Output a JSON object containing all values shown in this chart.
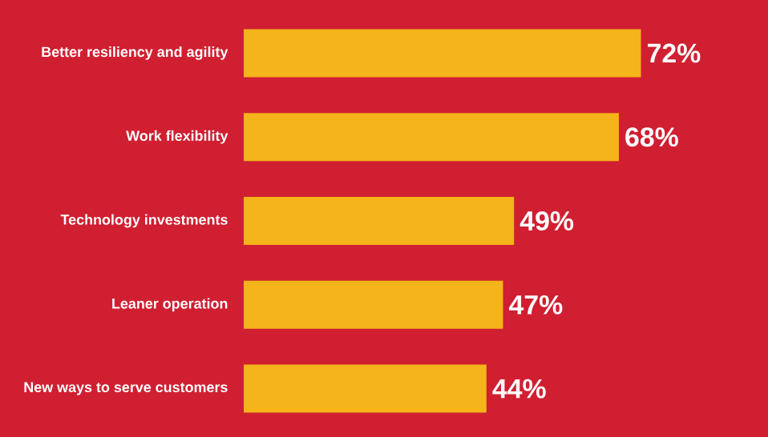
{
  "chart_data": {
    "type": "bar",
    "orientation": "horizontal",
    "categories": [
      "Better resiliency and agility",
      "Work flexibility",
      "Technology investments",
      "Leaner operation",
      "New ways to serve customers"
    ],
    "values": [
      72,
      68,
      49,
      47,
      44
    ],
    "value_labels": [
      "72%",
      "68%",
      "49%",
      "47%",
      "44%"
    ],
    "color": "#f4b41a",
    "tick_labels": "y"
  }
}
